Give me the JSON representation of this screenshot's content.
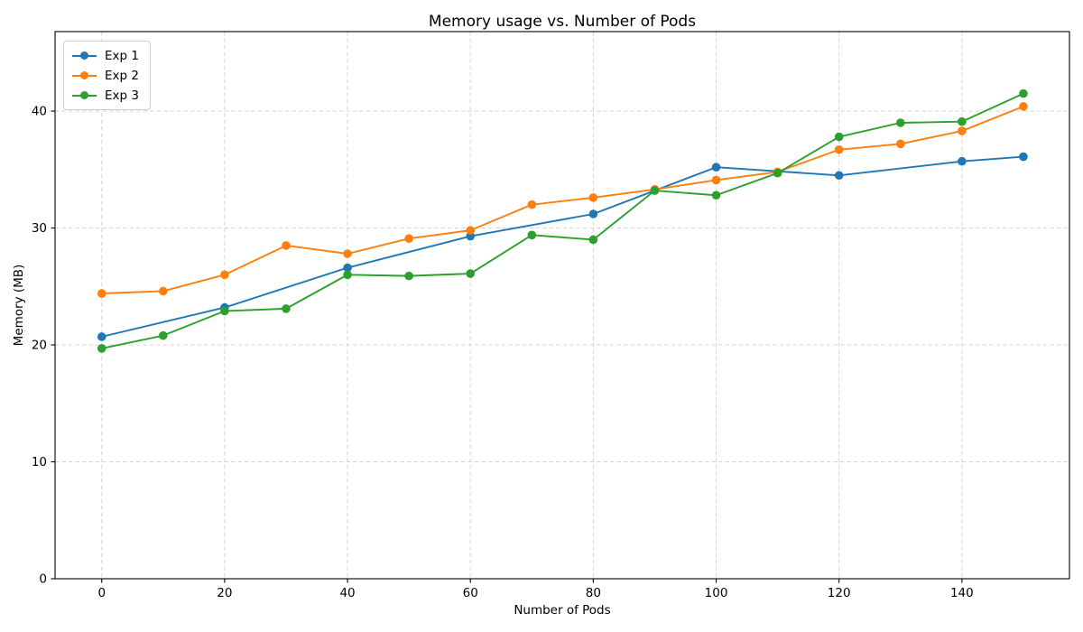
{
  "chart_data": {
    "type": "line",
    "title": "Memory usage vs. Number of Pods",
    "xlabel": "Number of Pods",
    "ylabel": "Memory (MB)",
    "xlim": [
      -7.6,
      157.5
    ],
    "ylim": [
      0,
      46.8
    ],
    "xticks": [
      0,
      20,
      40,
      60,
      80,
      100,
      120,
      140
    ],
    "yticks": [
      0,
      10,
      20,
      30,
      40
    ],
    "grid": true,
    "grid_style": "dashed",
    "grid_color": "#d4d4d4",
    "spine_color": "#000000",
    "legend_position": "upper left",
    "series": [
      {
        "name": "Exp 1",
        "color": "#1f77b4",
        "x": [
          0,
          20,
          40,
          60,
          80,
          100,
          120,
          140,
          150
        ],
        "y": [
          20.7,
          23.2,
          26.6,
          29.3,
          31.2,
          35.2,
          34.5,
          35.7,
          36.1
        ]
      },
      {
        "name": "Exp 2",
        "color": "#ff7f0e",
        "x": [
          0,
          10,
          20,
          30,
          40,
          50,
          60,
          70,
          80,
          90,
          100,
          110,
          120,
          130,
          140,
          150
        ],
        "y": [
          24.4,
          24.6,
          26.0,
          28.5,
          27.8,
          29.1,
          29.8,
          32.0,
          32.6,
          33.3,
          34.1,
          34.8,
          36.7,
          37.2,
          38.3,
          40.4
        ]
      },
      {
        "name": "Exp 3",
        "color": "#2ca02c",
        "x": [
          0,
          10,
          20,
          30,
          40,
          50,
          60,
          70,
          80,
          90,
          100,
          110,
          120,
          130,
          140,
          150
        ],
        "y": [
          19.7,
          20.8,
          22.9,
          23.1,
          26.0,
          25.9,
          26.1,
          29.4,
          29.0,
          33.2,
          32.8,
          34.7,
          37.8,
          39.0,
          39.1,
          41.5
        ]
      }
    ]
  }
}
